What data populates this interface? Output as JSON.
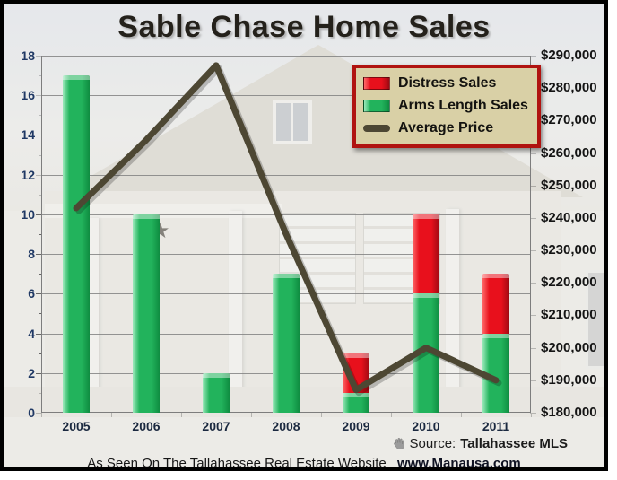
{
  "title": "Sable Chase Home Sales",
  "footer": {
    "source_label": "Source:",
    "source_value": "Tallahassee MLS",
    "tagline_text": "As Seen On The Tallahassee Real Estate Website",
    "tagline_link": "www.Manausa.com"
  },
  "colors": {
    "distress": "#e8101c",
    "distress_light": "#ff6a6a",
    "distress_dark": "#9c0a12",
    "arms_length": "#22b35c",
    "arms_length_light": "#9beabb",
    "arms_length_dark": "#0f8c40",
    "average_price": "#4d4733",
    "legend_bg": "#d9d0a6",
    "legend_border": "#b01310",
    "grid": "#8f8f8f"
  },
  "chart_data": {
    "type": "bar",
    "stacked": true,
    "grid": true,
    "legend_position": "top-right",
    "title": "Sable Chase Home Sales",
    "categories": [
      "2005",
      "2006",
      "2007",
      "2008",
      "2009",
      "2010",
      "2011"
    ],
    "series": [
      {
        "name": "Distress Sales",
        "type": "bar",
        "color": "#e8101c",
        "values": [
          0,
          0,
          0,
          0,
          2,
          4,
          3
        ]
      },
      {
        "name": "Arms Length Sales",
        "type": "bar",
        "color": "#22b35c",
        "values": [
          17,
          10,
          2,
          7,
          1,
          6,
          4
        ]
      },
      {
        "name": "Average Price",
        "type": "line",
        "axis": "right",
        "color": "#4d4733",
        "values": [
          243000,
          264000,
          287000,
          235000,
          187000,
          200000,
          190000
        ]
      }
    ],
    "left_axis": {
      "min": 0,
      "max": 18,
      "step": 2
    },
    "right_axis": {
      "min": 180000,
      "max": 290000,
      "step": 10000,
      "prefix": "$"
    }
  }
}
